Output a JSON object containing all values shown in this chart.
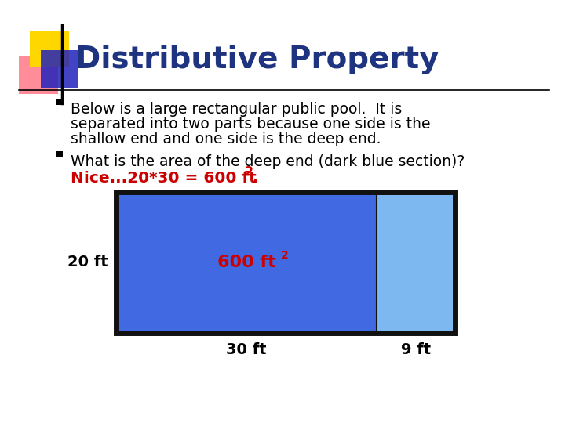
{
  "title": "Distributive Property",
  "title_color": "#1F3480",
  "title_fontsize": 28,
  "bg_color": "#FFFFFF",
  "bullet1_line1": "Below is a large rectangular public pool.  It is",
  "bullet1_line2": "separated into two parts because one side is the",
  "bullet1_line3": "shallow end and one side is the deep end.",
  "bullet2_line1": "What is the area of the deep end (dark blue section)?",
  "bullet2_line2": "Nice...20*30 = 600 ft².",
  "label_left": "20 ft",
  "label_bottom_left": "30 ft",
  "label_bottom_right": "9 ft",
  "dark_blue": "#4169E1",
  "light_blue": "#7EB8F0",
  "rect_outline": "#111111",
  "text_color_body": "#000000",
  "red_color": "#CC0000",
  "deco_yellow": "#FFD700",
  "deco_red_pink": "#FF6677",
  "deco_blue_dark": "#2222BB",
  "font_body_size": 13.5
}
